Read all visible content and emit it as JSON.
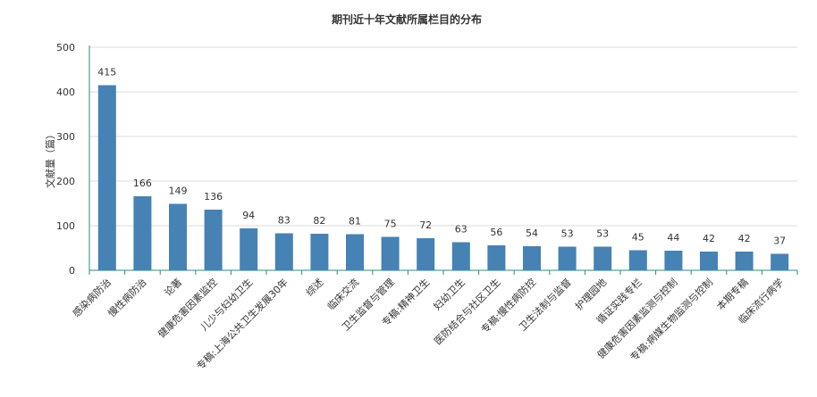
{
  "chart_data": {
    "type": "bar",
    "title": "期刊近十年文献所属栏目的分布",
    "xlabel": "",
    "ylabel": "文献量（篇）",
    "ylim": [
      0,
      500
    ],
    "yticks": [
      0,
      100,
      200,
      300,
      400,
      500
    ],
    "grid": true,
    "bar_color": "#4682b4",
    "categories": [
      "感染病防治",
      "慢性病防治",
      "论著",
      "健康危害因素监控",
      "儿少与妇幼卫生",
      "专稿:上海公共卫生发展30年",
      "综述",
      "临床交流",
      "卫生监督与管理",
      "专稿:精神卫生",
      "妇幼卫生",
      "医防结合与社区卫生",
      "专稿:慢性病防控",
      "卫生法制与监督",
      "护理园地",
      "循证实践专栏",
      "健康危害因素监测与控制",
      "专稿:病媒生物监测与控制",
      "本期专稿",
      "临床流行病学"
    ],
    "values": [
      415,
      166,
      149,
      136,
      94,
      83,
      82,
      81,
      75,
      72,
      63,
      56,
      54,
      53,
      53,
      45,
      44,
      42,
      42,
      37
    ]
  }
}
